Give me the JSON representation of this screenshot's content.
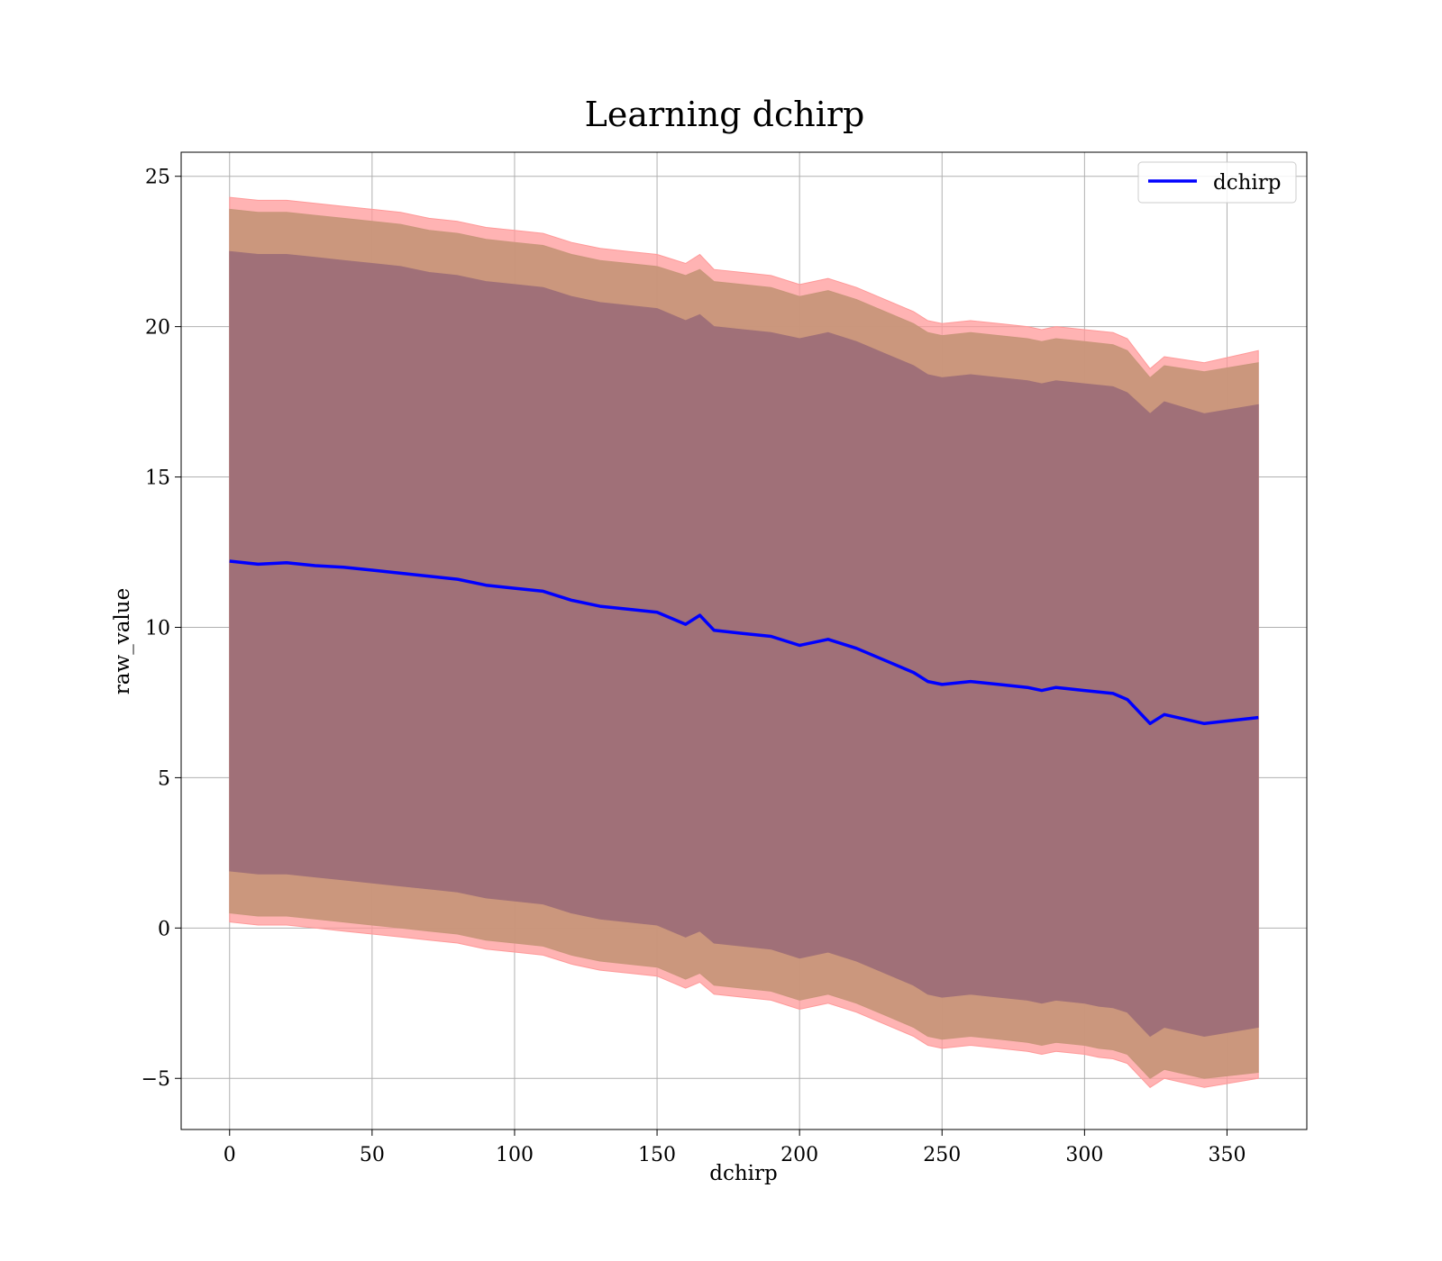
{
  "chart_data": {
    "type": "area",
    "title": "Learning dchirp",
    "xlabel": "dchirp",
    "ylabel": "raw_value",
    "xlim": [
      -17,
      378
    ],
    "ylim": [
      -6.7,
      25.8
    ],
    "xticks": [
      0,
      50,
      100,
      150,
      200,
      250,
      300,
      350
    ],
    "yticks": [
      -5,
      0,
      5,
      10,
      15,
      20,
      25
    ],
    "grid": true,
    "legend": {
      "placement": "top-right",
      "entries": [
        {
          "label": "dchirp",
          "color": "#0000ff"
        }
      ]
    },
    "colors": {
      "mean_line": "#0000ff",
      "outer_band": "#ff9999",
      "middle_band": "#c8967a",
      "inner_band": "#a07078"
    },
    "x": [
      0,
      10,
      20,
      30,
      40,
      50,
      60,
      70,
      80,
      90,
      100,
      110,
      120,
      130,
      140,
      150,
      160,
      165,
      170,
      180,
      190,
      200,
      210,
      220,
      230,
      240,
      245,
      250,
      260,
      270,
      280,
      285,
      290,
      300,
      305,
      310,
      315,
      323,
      328,
      342,
      361
    ],
    "series": [
      {
        "name": "dchirp",
        "role": "mean",
        "values": [
          12.2,
          12.1,
          12.15,
          12.05,
          12.0,
          11.9,
          11.8,
          11.7,
          11.6,
          11.4,
          11.3,
          11.2,
          10.9,
          10.7,
          10.6,
          10.5,
          10.1,
          10.4,
          9.9,
          9.8,
          9.7,
          9.4,
          9.6,
          9.3,
          8.9,
          8.5,
          8.2,
          8.1,
          8.2,
          8.1,
          8.0,
          7.9,
          8.0,
          7.9,
          7.85,
          7.8,
          7.6,
          6.8,
          7.1,
          6.8,
          7.0
        ]
      },
      {
        "name": "band_outer",
        "role": "band",
        "upper": [
          24.3,
          24.2,
          24.2,
          24.1,
          24.0,
          23.9,
          23.8,
          23.6,
          23.5,
          23.3,
          23.2,
          23.1,
          22.8,
          22.6,
          22.5,
          22.4,
          22.1,
          22.4,
          21.9,
          21.8,
          21.7,
          21.4,
          21.6,
          21.3,
          20.9,
          20.5,
          20.2,
          20.1,
          20.2,
          20.1,
          20.0,
          19.9,
          20.0,
          19.9,
          19.85,
          19.8,
          19.6,
          18.6,
          19.0,
          18.8,
          19.2
        ],
        "lower": [
          0.2,
          0.1,
          0.1,
          0.0,
          -0.1,
          -0.2,
          -0.3,
          -0.4,
          -0.5,
          -0.7,
          -0.8,
          -0.9,
          -1.2,
          -1.4,
          -1.5,
          -1.6,
          -2.0,
          -1.8,
          -2.2,
          -2.3,
          -2.4,
          -2.7,
          -2.5,
          -2.8,
          -3.2,
          -3.6,
          -3.9,
          -4.0,
          -3.9,
          -4.0,
          -4.1,
          -4.2,
          -4.1,
          -4.2,
          -4.3,
          -4.35,
          -4.5,
          -5.3,
          -5.0,
          -5.3,
          -5.0
        ]
      },
      {
        "name": "band_middle",
        "role": "band",
        "upper": [
          23.9,
          23.8,
          23.8,
          23.7,
          23.6,
          23.5,
          23.4,
          23.2,
          23.1,
          22.9,
          22.8,
          22.7,
          22.4,
          22.2,
          22.1,
          22.0,
          21.7,
          21.9,
          21.5,
          21.4,
          21.3,
          21.0,
          21.2,
          20.9,
          20.5,
          20.1,
          19.8,
          19.7,
          19.8,
          19.7,
          19.6,
          19.5,
          19.6,
          19.5,
          19.45,
          19.4,
          19.2,
          18.3,
          18.7,
          18.5,
          18.8
        ],
        "lower": [
          0.5,
          0.4,
          0.4,
          0.3,
          0.2,
          0.1,
          0.0,
          -0.1,
          -0.2,
          -0.4,
          -0.5,
          -0.6,
          -0.9,
          -1.1,
          -1.2,
          -1.3,
          -1.7,
          -1.5,
          -1.9,
          -2.0,
          -2.1,
          -2.4,
          -2.2,
          -2.5,
          -2.9,
          -3.3,
          -3.6,
          -3.7,
          -3.6,
          -3.7,
          -3.8,
          -3.9,
          -3.8,
          -3.9,
          -4.0,
          -4.05,
          -4.2,
          -5.0,
          -4.7,
          -5.0,
          -4.8
        ]
      },
      {
        "name": "band_inner",
        "role": "band",
        "upper": [
          22.5,
          22.4,
          22.4,
          22.3,
          22.2,
          22.1,
          22.0,
          21.8,
          21.7,
          21.5,
          21.4,
          21.3,
          21.0,
          20.8,
          20.7,
          20.6,
          20.2,
          20.4,
          20.0,
          19.9,
          19.8,
          19.6,
          19.8,
          19.5,
          19.1,
          18.7,
          18.4,
          18.3,
          18.4,
          18.3,
          18.2,
          18.1,
          18.2,
          18.1,
          18.05,
          18.0,
          17.8,
          17.1,
          17.5,
          17.1,
          17.4
        ],
        "lower": [
          1.9,
          1.8,
          1.8,
          1.7,
          1.6,
          1.5,
          1.4,
          1.3,
          1.2,
          1.0,
          0.9,
          0.8,
          0.5,
          0.3,
          0.2,
          0.1,
          -0.3,
          -0.1,
          -0.5,
          -0.6,
          -0.7,
          -1.0,
          -0.8,
          -1.1,
          -1.5,
          -1.9,
          -2.2,
          -2.3,
          -2.2,
          -2.3,
          -2.4,
          -2.5,
          -2.4,
          -2.5,
          -2.6,
          -2.65,
          -2.8,
          -3.6,
          -3.3,
          -3.6,
          -3.3
        ]
      }
    ]
  }
}
